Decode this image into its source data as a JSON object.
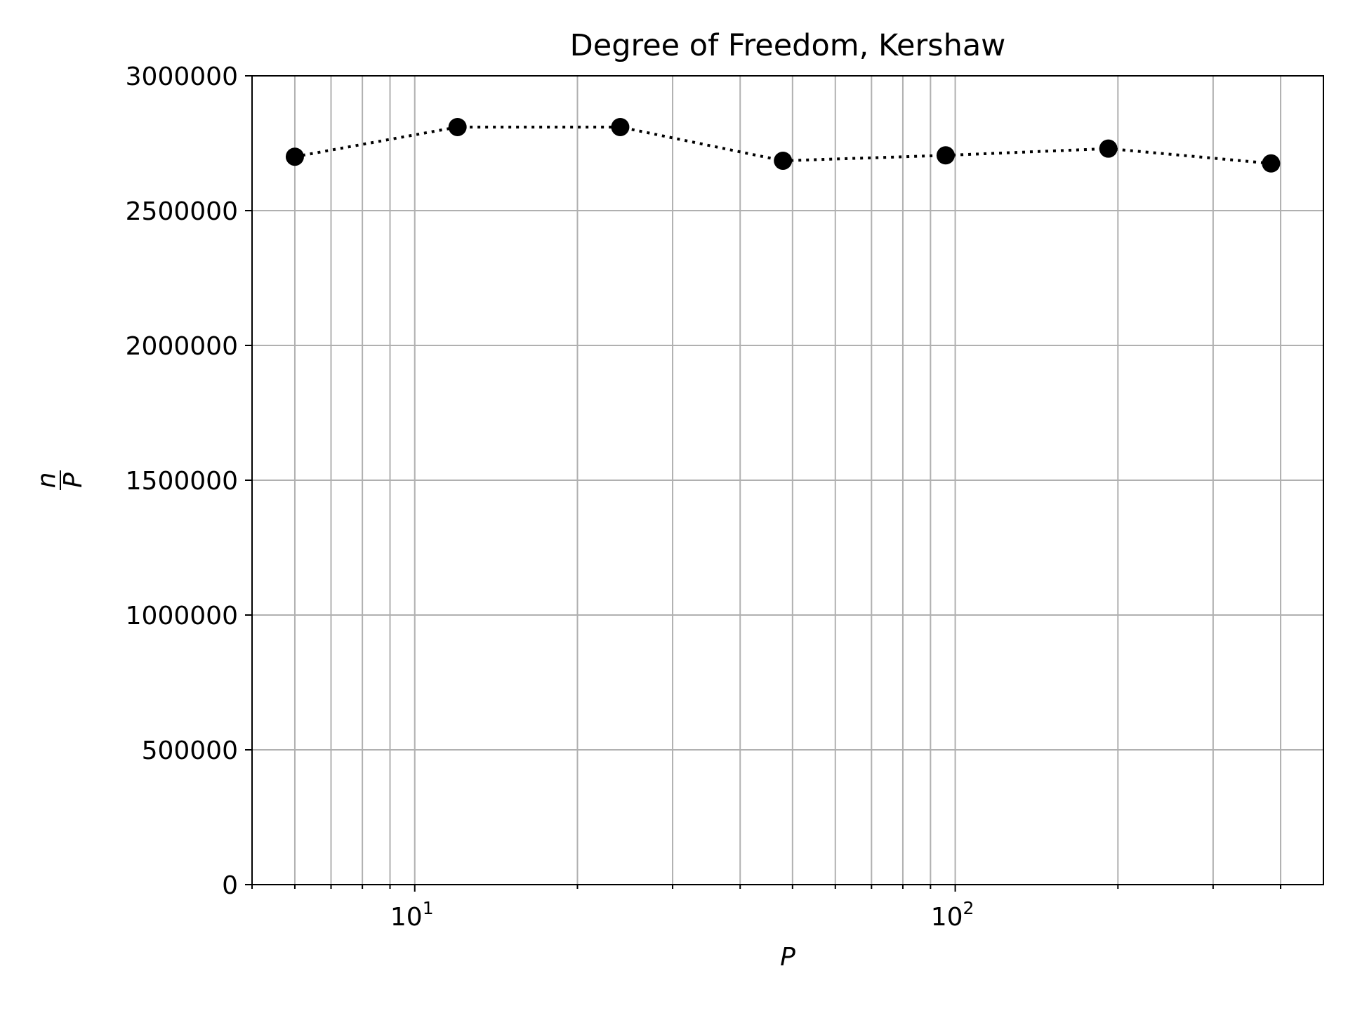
{
  "chart_data": {
    "type": "line",
    "title": "Degree of Freedom, Kershaw",
    "xlabel": "P",
    "ylabel": {
      "numerator": "n",
      "denominator": "P"
    },
    "x_scale": "log",
    "xlim": [
      5,
      480
    ],
    "ylim": [
      0,
      3000000
    ],
    "grid": {
      "major": true,
      "minor_x": true
    },
    "x_ticks": [
      {
        "value": 10,
        "base": "10",
        "exp": "1"
      },
      {
        "value": 100,
        "base": "10",
        "exp": "2"
      }
    ],
    "y_ticks": [
      {
        "value": 0,
        "label": "0"
      },
      {
        "value": 500000,
        "label": "500000"
      },
      {
        "value": 1000000,
        "label": "1000000"
      },
      {
        "value": 1500000,
        "label": "1500000"
      },
      {
        "value": 2000000,
        "label": "2000000"
      },
      {
        "value": 2500000,
        "label": "2500000"
      },
      {
        "value": 3000000,
        "label": "3000000"
      }
    ],
    "series": [
      {
        "line_style": "dotted",
        "marker": "circle",
        "color": "#000000",
        "x": [
          6,
          12,
          24,
          48,
          96,
          192,
          384
        ],
        "y": [
          2700000,
          2810000,
          2810000,
          2685000,
          2705000,
          2730000,
          2675000
        ]
      }
    ]
  }
}
